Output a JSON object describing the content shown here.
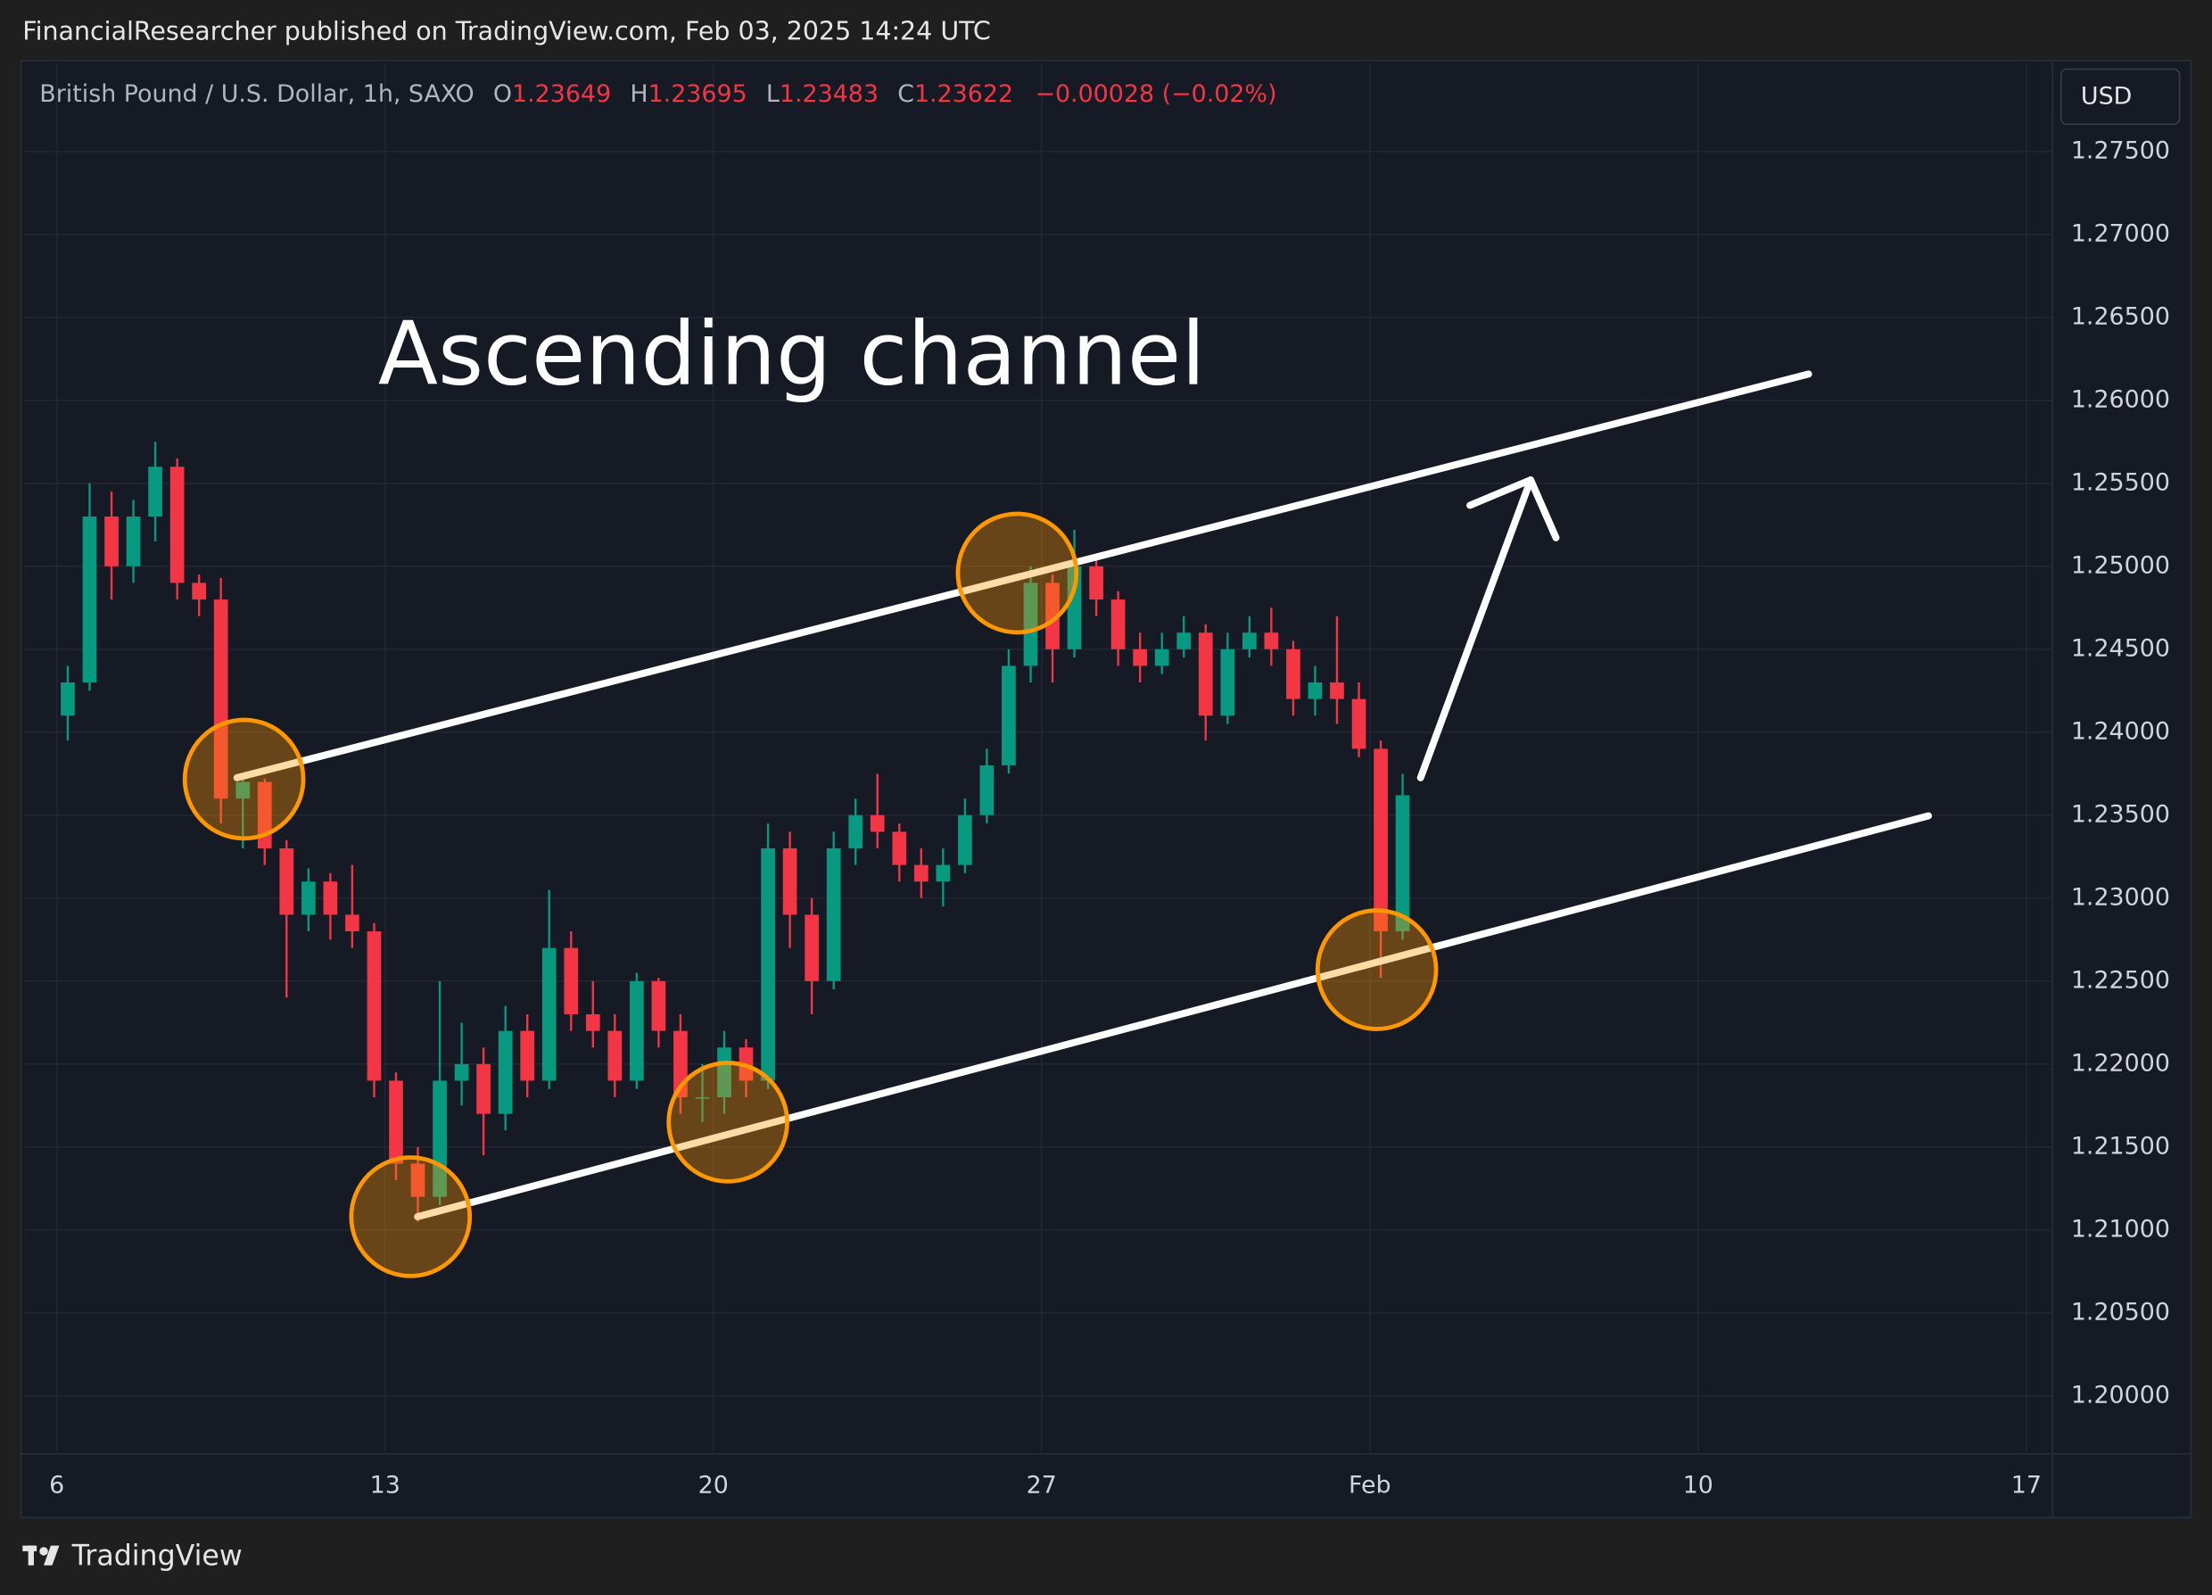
{
  "header": {
    "byline": "FinancialResearcher published on TradingView.com, Feb 03, 2025 14:24 UTC"
  },
  "chart_data": {
    "type": "candlestick",
    "symbol": "British Pound / U.S. Dollar, 1h, SAXO",
    "ohlc": [
      {
        "label": "O",
        "value": 1.23649
      },
      {
        "label": "H",
        "value": 1.23695
      },
      {
        "label": "L",
        "value": 1.23483
      },
      {
        "label": "C",
        "value": 1.23622
      }
    ],
    "change": "−0.00028 (−0.02%)",
    "currency": "USD",
    "annotation": "Ascending channel",
    "up_color": "#089981",
    "down_color": "#f23645",
    "grid": true,
    "xlim": [
      5.5,
      48.4
    ],
    "xticks": [
      6,
      13,
      20,
      27,
      {
        "value": 34,
        "label": "Feb"
      },
      {
        "value": 41,
        "label": "10"
      },
      {
        "value": 48,
        "label": "17"
      }
    ],
    "ylim": [
      1.19651,
      1.2803
    ],
    "yticks": [
      {
        "value": 1.2,
        "label": "1.20000"
      },
      {
        "value": 1.205,
        "label": "1.20500"
      },
      {
        "value": 1.21,
        "label": "1.21000"
      },
      {
        "value": 1.215,
        "label": "1.21500"
      },
      {
        "value": 1.22,
        "label": "1.22000"
      },
      {
        "value": 1.225,
        "label": "1.22500"
      },
      {
        "value": 1.23,
        "label": "1.23000"
      },
      {
        "value": 1.235,
        "label": "1.23500"
      },
      {
        "value": 1.24,
        "label": "1.24000"
      },
      {
        "value": 1.245,
        "label": "1.24500"
      },
      {
        "value": 1.25,
        "label": "1.25000"
      },
      {
        "value": 1.255,
        "label": "1.25500"
      },
      {
        "value": 1.26,
        "label": "1.26000"
      },
      {
        "value": 1.265,
        "label": "1.26500"
      },
      {
        "value": 1.27,
        "label": "1.27000"
      },
      {
        "value": 1.275,
        "label": "1.27500"
      }
    ],
    "x": [
      6,
      6.333,
      6.667,
      7,
      7.333,
      7.667,
      8,
      8.333,
      8.667,
      9,
      9.333,
      9.667,
      10,
      10.333,
      10.667,
      13,
      13.333,
      13.667,
      14,
      14.333,
      14.667,
      15,
      15.333,
      15.667,
      16,
      16.333,
      16.667,
      17,
      17.333,
      17.667,
      20,
      20.333,
      20.667,
      21,
      21.333,
      21.667,
      22,
      22.333,
      22.667,
      23,
      23.333,
      23.667,
      24,
      24.333,
      24.667,
      27,
      27.333,
      27.667,
      28,
      28.333,
      28.667,
      29,
      29.333,
      29.667,
      30,
      30.333,
      30.667,
      31,
      31.333,
      31.667,
      34,
      34.333
    ],
    "open": [
      1.241,
      1.243,
      1.253,
      1.25,
      1.253,
      1.256,
      1.249,
      1.248,
      1.236,
      1.237,
      1.233,
      1.229,
      1.231,
      1.229,
      1.228,
      1.219,
      1.214,
      1.212,
      1.219,
      1.22,
      1.217,
      1.222,
      1.219,
      1.227,
      1.223,
      1.222,
      1.219,
      1.225,
      1.222,
      1.218,
      1.218,
      1.221,
      1.219,
      1.233,
      1.229,
      1.225,
      1.233,
      1.235,
      1.234,
      1.232,
      1.231,
      1.232,
      1.235,
      1.238,
      1.244,
      1.249,
      1.245,
      1.25,
      1.248,
      1.245,
      1.244,
      1.245,
      1.246,
      1.241,
      1.245,
      1.246,
      1.245,
      1.242,
      1.243,
      1.242,
      1.239,
      1.228
    ],
    "high": [
      1.244,
      1.255,
      1.2545,
      1.254,
      1.2575,
      1.2565,
      1.2495,
      1.2493,
      1.2375,
      1.2372,
      1.2335,
      1.2318,
      1.2315,
      1.232,
      1.2285,
      1.2195,
      1.215,
      1.225,
      1.2225,
      1.221,
      1.2235,
      1.223,
      1.2305,
      1.228,
      1.225,
      1.223,
      1.2255,
      1.2252,
      1.223,
      1.22,
      1.222,
      1.2215,
      1.2345,
      1.234,
      1.23,
      1.234,
      1.236,
      1.2375,
      1.2345,
      1.233,
      1.233,
      1.236,
      1.239,
      1.245,
      1.25,
      1.2495,
      1.2522,
      1.2505,
      1.2485,
      1.246,
      1.246,
      1.247,
      1.2465,
      1.246,
      1.247,
      1.2475,
      1.2455,
      1.244,
      1.247,
      1.243,
      1.2395,
      1.2375
    ],
    "low": [
      1.2395,
      1.2425,
      1.248,
      1.249,
      1.2515,
      1.248,
      1.247,
      1.2345,
      1.233,
      1.232,
      1.224,
      1.228,
      1.2275,
      1.227,
      1.218,
      1.213,
      1.2105,
      1.2115,
      1.2175,
      1.2145,
      1.216,
      1.218,
      1.2185,
      1.222,
      1.221,
      1.218,
      1.2185,
      1.221,
      1.217,
      1.2165,
      1.217,
      1.218,
      1.2185,
      1.227,
      1.223,
      1.2245,
      1.232,
      1.233,
      1.231,
      1.23,
      1.2295,
      1.2315,
      1.2345,
      1.2375,
      1.243,
      1.243,
      1.2445,
      1.247,
      1.244,
      1.243,
      1.2435,
      1.2445,
      1.2395,
      1.2405,
      1.2445,
      1.244,
      1.241,
      1.241,
      1.2405,
      1.2385,
      1.2252,
      1.2275
    ],
    "close": [
      1.243,
      1.253,
      1.25,
      1.253,
      1.256,
      1.249,
      1.248,
      1.236,
      1.237,
      1.233,
      1.229,
      1.231,
      1.229,
      1.228,
      1.219,
      1.214,
      1.212,
      1.219,
      1.22,
      1.217,
      1.222,
      1.219,
      1.227,
      1.223,
      1.222,
      1.219,
      1.225,
      1.222,
      1.218,
      1.218,
      1.221,
      1.219,
      1.233,
      1.229,
      1.225,
      1.233,
      1.235,
      1.234,
      1.232,
      1.231,
      1.232,
      1.235,
      1.238,
      1.244,
      1.249,
      1.245,
      1.25,
      1.248,
      1.245,
      1.244,
      1.245,
      1.246,
      1.241,
      1.245,
      1.246,
      1.245,
      1.242,
      1.243,
      1.242,
      1.239,
      1.228,
      1.2362
    ]
  },
  "footer": {
    "brand": "TradingView"
  }
}
